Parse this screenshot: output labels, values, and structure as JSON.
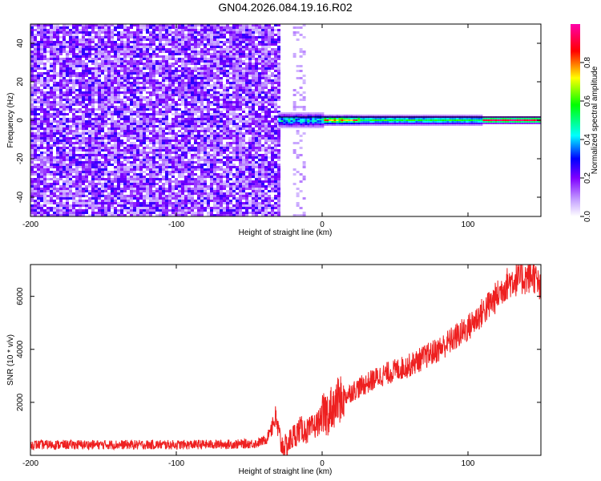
{
  "title": "GN04.2026.084.19.16.R02",
  "chart_data": [
    {
      "type": "heatmap",
      "xlabel": "Height of straight line (km)",
      "ylabel": "Frequency (Hz)",
      "xlim": [
        -200,
        150
      ],
      "ylim": [
        -50,
        50
      ],
      "xticks": [
        -200,
        -100,
        0,
        100
      ],
      "yticks": [
        -40,
        -20,
        0,
        20,
        40
      ],
      "colorbar": {
        "label": "Normalized spectral amplitude",
        "range": [
          0,
          1
        ],
        "ticks": [
          "0.0",
          "0.2",
          "0.4",
          "0.6",
          "0.8"
        ],
        "colors": [
          "#ffffff",
          "#7f00ff",
          "#0000ff",
          "#00ffff",
          "#00ff00",
          "#ffff00",
          "#ff0000",
          "#ff00ff"
        ]
      },
      "regions": [
        {
          "x": [
            -200,
            -30
          ],
          "description": "broadband noise, amplitude ~0.1-0.25"
        },
        {
          "x": [
            -30,
            150
          ],
          "freq_center": 0,
          "description": "narrow carrier line near 0 Hz, amplitude 0.4-1.0"
        }
      ]
    },
    {
      "type": "line",
      "xlabel": "Height of straight line (km)",
      "ylabel": "SNR (10 * v/v)",
      "xlim": [
        -200,
        150
      ],
      "ylim": [
        0,
        7200
      ],
      "xticks": [
        -200,
        -100,
        0,
        100
      ],
      "yticks": [
        2000,
        4000,
        6000
      ],
      "series": [
        {
          "color": "#ee2020",
          "x": [
            -200,
            -150,
            -100,
            -60,
            -45,
            -38,
            -35,
            -32,
            -30,
            -28,
            -25,
            -20,
            -15,
            -10,
            -5,
            0,
            5,
            10,
            20,
            30,
            40,
            50,
            60,
            70,
            80,
            90,
            100,
            110,
            120,
            125,
            130,
            140,
            145,
            150
          ],
          "values": [
            400,
            400,
            400,
            420,
            450,
            600,
            1100,
            1400,
            900,
            400,
            300,
            700,
            1000,
            900,
            1100,
            1400,
            1700,
            2000,
            2400,
            2700,
            3000,
            3200,
            3400,
            3700,
            4000,
            4400,
            4800,
            5400,
            6000,
            6400,
            6600,
            6700,
            6800,
            6200
          ]
        }
      ]
    }
  ]
}
